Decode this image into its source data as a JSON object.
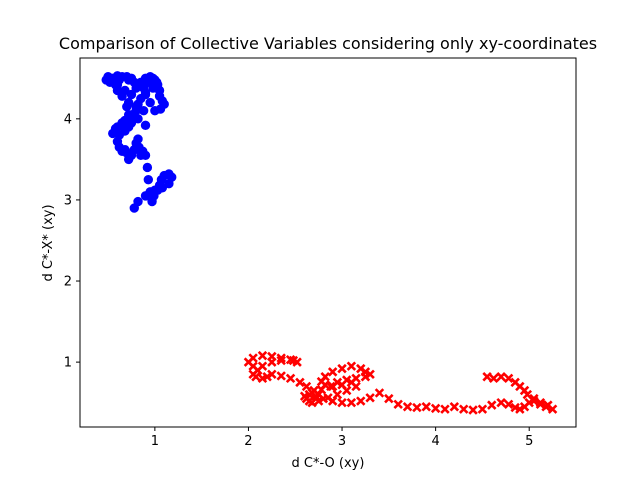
{
  "chart_data": {
    "type": "scatter",
    "title": "Comparison of Collective Variables considering only xy-coordinates",
    "xlabel": "d C*-O (xy)",
    "ylabel": "d C*-X* (xy)",
    "xlim": [
      0.2,
      5.5
    ],
    "ylim": [
      0.2,
      4.75
    ],
    "xticks": [
      1,
      2,
      3,
      4,
      5
    ],
    "yticks": [
      1,
      2,
      3,
      4
    ],
    "xtick_labels": [
      "1",
      "2",
      "3",
      "4",
      "5"
    ],
    "ytick_labels": [
      "1",
      "2",
      "3",
      "4"
    ],
    "grid": false,
    "legend": "none",
    "series": [
      {
        "color": "#0000ff",
        "marker": "circle",
        "x": [
          0.78,
          0.82,
          0.9,
          1.0,
          1.08,
          1.15,
          1.18,
          1.15,
          1.1,
          1.07,
          1.05,
          1.03,
          0.99,
          0.97,
          0.95,
          0.93,
          0.92,
          0.9,
          0.87,
          0.85,
          0.83,
          0.82,
          0.8,
          0.78,
          0.75,
          0.72,
          0.7,
          0.68,
          0.65,
          0.62,
          0.6,
          0.62,
          0.68,
          0.72,
          0.65,
          0.58,
          0.55,
          0.6,
          0.68,
          0.75,
          0.82,
          0.9,
          0.88,
          0.8,
          0.72,
          0.65,
          0.6,
          0.58,
          0.62,
          0.7,
          0.75,
          0.78,
          0.72,
          0.65,
          0.6,
          0.55,
          0.5,
          0.48,
          0.52,
          0.6,
          0.68,
          0.75,
          0.8,
          0.85,
          0.9,
          0.95,
          1.0,
          1.03,
          1.05,
          1.05,
          1.08,
          1.1,
          1.06,
          1.0,
          0.95,
          0.9,
          0.88,
          0.93,
          0.98,
          1.02,
          0.98,
          0.9,
          0.85,
          0.82,
          0.8,
          0.78,
          0.75,
          0.72,
          0.7
        ],
        "y": [
          2.9,
          2.98,
          3.05,
          3.12,
          3.15,
          3.2,
          3.28,
          3.32,
          3.3,
          3.25,
          3.18,
          3.12,
          3.05,
          2.98,
          3.1,
          3.25,
          3.4,
          3.55,
          3.6,
          3.55,
          3.65,
          3.75,
          3.7,
          3.62,
          3.55,
          3.5,
          3.58,
          3.62,
          3.6,
          3.65,
          3.72,
          3.8,
          3.85,
          3.9,
          3.95,
          3.88,
          3.82,
          3.9,
          3.98,
          4.05,
          4.0,
          3.92,
          4.1,
          4.15,
          4.2,
          4.28,
          4.35,
          4.42,
          4.48,
          4.52,
          4.5,
          4.45,
          4.48,
          4.52,
          4.53,
          4.5,
          4.52,
          4.48,
          4.45,
          4.42,
          4.35,
          4.3,
          4.38,
          4.45,
          4.5,
          4.52,
          4.48,
          4.42,
          4.35,
          4.28,
          4.22,
          4.18,
          4.12,
          4.1,
          4.2,
          4.3,
          4.38,
          4.45,
          4.5,
          4.45,
          4.38,
          4.32,
          4.25,
          4.18,
          4.1,
          4.0,
          3.95,
          4.05,
          4.15
        ]
      },
      {
        "color": "#ff0000",
        "marker": "x",
        "x": [
          2.05,
          2.0,
          2.05,
          2.15,
          2.25,
          2.35,
          2.48,
          2.52,
          2.45,
          2.35,
          2.25,
          2.15,
          2.1,
          2.05,
          2.08,
          2.15,
          2.2,
          2.25,
          2.35,
          2.45,
          2.55,
          2.62,
          2.7,
          2.75,
          2.72,
          2.65,
          2.6,
          2.68,
          2.78,
          2.88,
          2.95,
          3.05,
          3.15,
          3.25,
          3.3,
          3.25,
          3.2,
          3.1,
          3.0,
          2.9,
          2.82,
          2.78,
          2.82,
          2.9,
          3.0,
          3.1,
          3.15,
          3.05,
          2.95,
          2.85,
          2.75,
          2.68,
          2.62,
          2.65,
          2.72,
          2.8,
          2.9,
          3.0,
          3.1,
          3.2,
          3.3,
          3.4,
          3.5,
          3.6,
          3.7,
          3.8,
          3.9,
          4.0,
          4.1,
          4.2,
          4.3,
          4.4,
          4.5,
          4.6,
          4.7,
          4.78,
          4.85,
          4.9,
          4.95,
          5.0,
          5.05,
          5.12,
          5.18,
          5.25,
          5.2,
          5.12,
          5.05,
          4.98,
          4.95,
          4.9,
          4.85,
          4.78,
          4.7,
          4.62,
          4.55
        ],
        "y": [
          0.95,
          1.0,
          1.05,
          1.08,
          1.07,
          1.05,
          1.02,
          1.0,
          1.03,
          1.02,
          1.0,
          0.95,
          0.9,
          0.85,
          0.82,
          0.8,
          0.82,
          0.85,
          0.83,
          0.8,
          0.75,
          0.7,
          0.65,
          0.6,
          0.55,
          0.52,
          0.58,
          0.62,
          0.66,
          0.7,
          0.75,
          0.78,
          0.8,
          0.82,
          0.85,
          0.88,
          0.92,
          0.95,
          0.92,
          0.88,
          0.82,
          0.76,
          0.72,
          0.7,
          0.72,
          0.75,
          0.7,
          0.65,
          0.6,
          0.56,
          0.52,
          0.5,
          0.55,
          0.6,
          0.58,
          0.55,
          0.52,
          0.5,
          0.5,
          0.52,
          0.56,
          0.62,
          0.55,
          0.48,
          0.45,
          0.44,
          0.45,
          0.43,
          0.42,
          0.45,
          0.42,
          0.41,
          0.42,
          0.47,
          0.5,
          0.48,
          0.44,
          0.42,
          0.45,
          0.5,
          0.52,
          0.48,
          0.45,
          0.42,
          0.47,
          0.5,
          0.55,
          0.6,
          0.65,
          0.7,
          0.75,
          0.8,
          0.82,
          0.8,
          0.82
        ]
      }
    ]
  }
}
